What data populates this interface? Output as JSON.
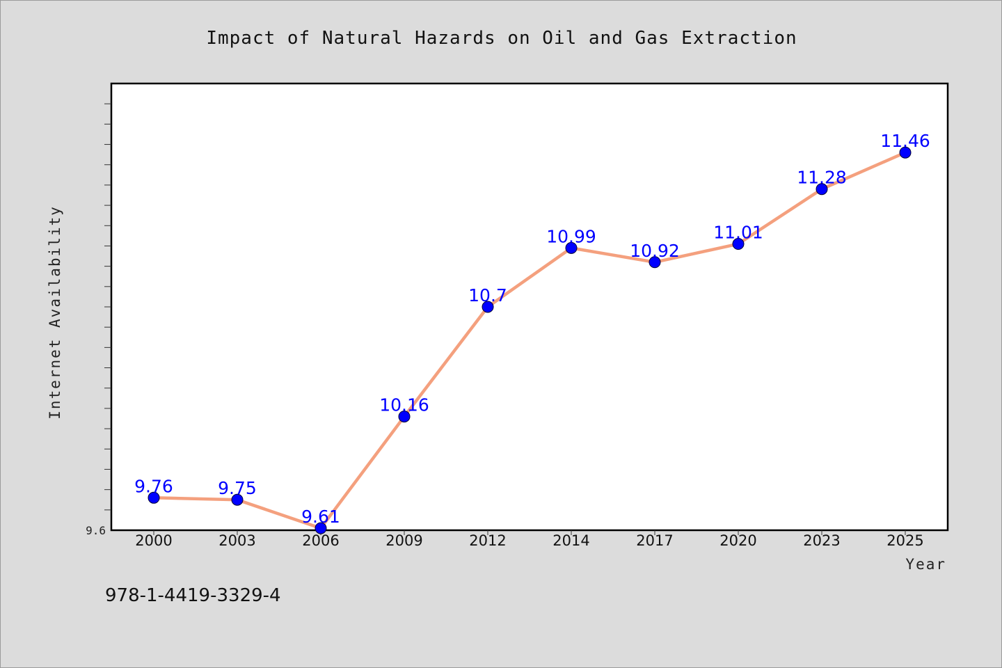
{
  "chart_data": {
    "type": "line",
    "title": "Impact of Natural Hazards on Oil and Gas Extraction",
    "xlabel": "Year",
    "ylabel": "Internet Availability",
    "categories": [
      "2000",
      "2003",
      "2006",
      "2009",
      "2012",
      "2014",
      "2017",
      "2020",
      "2023",
      "2025"
    ],
    "values": [
      9.76,
      9.75,
      9.61,
      10.16,
      10.7,
      10.99,
      10.92,
      11.01,
      11.28,
      11.46
    ],
    "data_labels": [
      "9.76",
      "9.75",
      "9.61",
      "10.16",
      "10.7",
      "10.99",
      "10.92",
      "11.01",
      "11.28",
      "11.46"
    ],
    "ylim": [
      9.6,
      11.8
    ],
    "y_tick_labels": [
      "9.6"
    ],
    "grid": false,
    "line_color": "#f4a07e",
    "marker_color": "#0000ff",
    "label_color": "#0000ff"
  },
  "footnote": "978-1-4419-3329-4"
}
